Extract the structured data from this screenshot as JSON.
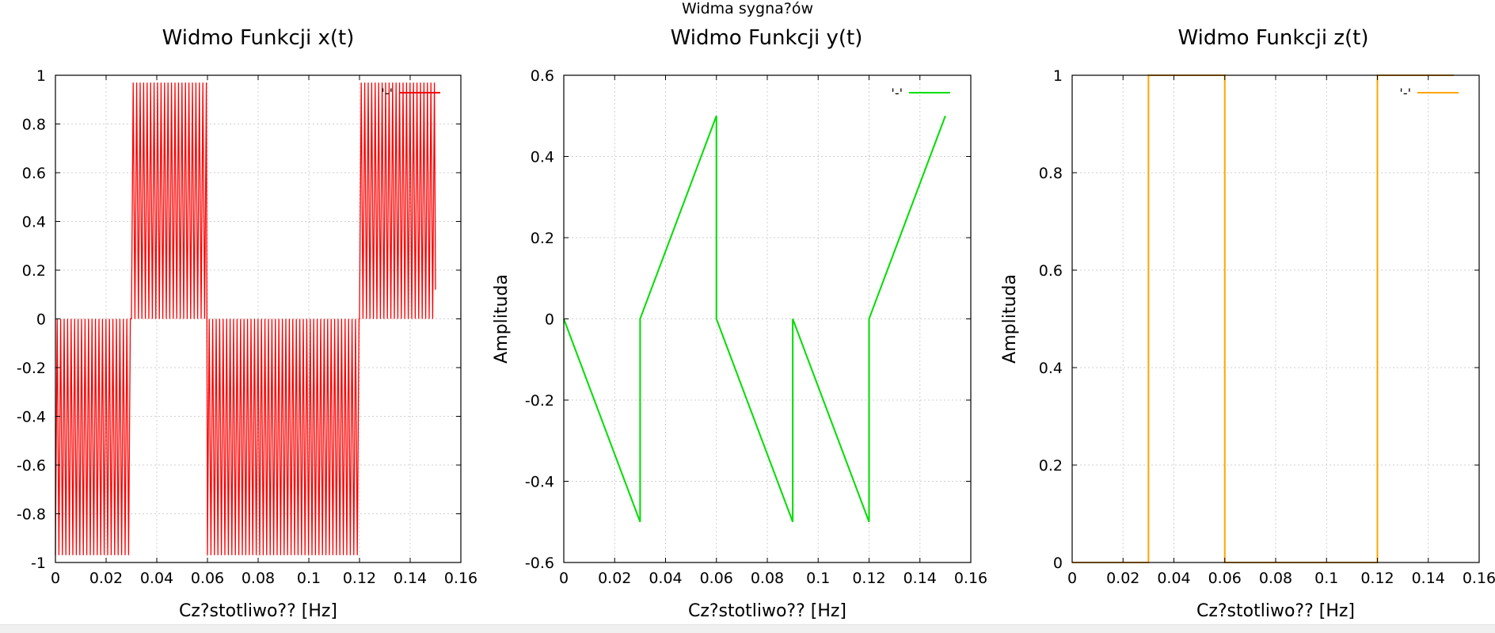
{
  "figure_title": "Widma sygna?ów",
  "chart_data": [
    {
      "type": "line",
      "title": "Widmo Funkcji x(t)",
      "xlabel": "Cz?stotliwo?? [Hz]",
      "ylabel": "",
      "xlim": [
        0,
        0.16
      ],
      "ylim": [
        -1,
        1
      ],
      "xticks": [
        0,
        0.02,
        0.04,
        0.06,
        0.08,
        0.1,
        0.12,
        0.14,
        0.16
      ],
      "xtick_labels": [
        "0",
        "0.02",
        "0.04",
        "0.06",
        "0.08",
        "0.1",
        "0.12",
        "0.14",
        "0.16"
      ],
      "yticks": [
        -1,
        -0.8,
        -0.6,
        -0.4,
        -0.2,
        0,
        0.2,
        0.4,
        0.6,
        0.8,
        1
      ],
      "ytick_labels": [
        "-1",
        "-0.8",
        "-0.6",
        "-0.4",
        "-0.2",
        "0",
        "0.2",
        "0.4",
        "0.6",
        "0.8",
        "1"
      ],
      "grid": true,
      "legend": "top-right",
      "color": "#ff0000",
      "series": [
        {
          "legend_label": "'-'",
          "style": "dense-oscillation",
          "segments": [
            {
              "x_start": 0.0,
              "x_end": 0.03,
              "low": -0.97,
              "high": 0.0
            },
            {
              "x_start": 0.03,
              "x_end": 0.06,
              "low": 0.0,
              "high": 0.97
            },
            {
              "x_start": 0.06,
              "x_end": 0.12,
              "low": -0.97,
              "high": 0.0
            },
            {
              "x_start": 0.12,
              "x_end": 0.15,
              "low": 0.0,
              "high": 0.97
            }
          ],
          "end_point": [
            0.15,
            0.12
          ]
        }
      ]
    },
    {
      "type": "line",
      "title": "Widmo Funkcji y(t)",
      "xlabel": "Cz?stotliwo?? [Hz]",
      "ylabel": "Amplituda",
      "xlim": [
        0,
        0.16
      ],
      "ylim": [
        -0.6,
        0.6
      ],
      "xticks": [
        0,
        0.02,
        0.04,
        0.06,
        0.08,
        0.1,
        0.12,
        0.14,
        0.16
      ],
      "xtick_labels": [
        "0",
        "0.02",
        "0.04",
        "0.06",
        "0.08",
        "0.1",
        "0.12",
        "0.14",
        "0.16"
      ],
      "yticks": [
        -0.6,
        -0.4,
        -0.2,
        0,
        0.2,
        0.4,
        0.6
      ],
      "ytick_labels": [
        "-0.6",
        "-0.4",
        "-0.2",
        "0",
        "0.2",
        "0.4",
        "0.6"
      ],
      "grid": true,
      "legend": "top-right",
      "color": "#00dd00",
      "series": [
        {
          "legend_label": "'-'",
          "x": [
            0,
            0.03,
            0.03,
            0.06,
            0.06,
            0.09,
            0.09,
            0.12,
            0.12,
            0.15
          ],
          "y": [
            0,
            -0.5,
            0,
            0.5,
            0,
            -0.5,
            0,
            -0.5,
            0,
            0.5
          ]
        }
      ]
    },
    {
      "type": "line",
      "title": "Widmo Funkcji z(t)",
      "xlabel": "Cz?stotliwo?? [Hz]",
      "ylabel": "Amplituda",
      "xlim": [
        0,
        0.16
      ],
      "ylim": [
        0,
        1
      ],
      "xticks": [
        0,
        0.02,
        0.04,
        0.06,
        0.08,
        0.1,
        0.12,
        0.14,
        0.16
      ],
      "xtick_labels": [
        "0",
        "0.02",
        "0.04",
        "0.06",
        "0.08",
        "0.1",
        "0.12",
        "0.14",
        "0.16"
      ],
      "yticks": [
        0,
        0.2,
        0.4,
        0.6,
        0.8,
        1
      ],
      "ytick_labels": [
        "0",
        "0.2",
        "0.4",
        "0.6",
        "0.8",
        "1"
      ],
      "grid": true,
      "legend": "top-right",
      "color": "#ffa500",
      "series": [
        {
          "legend_label": "'-'",
          "x": [
            0,
            0.03,
            0.03,
            0.06,
            0.06,
            0.12,
            0.12,
            0.15
          ],
          "y": [
            0,
            0,
            1,
            1,
            0,
            0,
            1,
            1
          ]
        }
      ]
    }
  ]
}
